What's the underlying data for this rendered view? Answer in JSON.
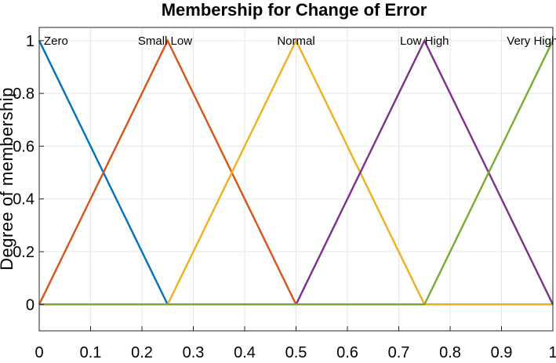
{
  "chart_data": {
    "type": "line",
    "title": "Membership for Change of Error",
    "xlabel": "",
    "ylabel": "Degree of membership",
    "xlim": [
      0,
      1
    ],
    "ylim": [
      -0.1,
      1.05
    ],
    "xticks": [
      "0",
      "0.1",
      "0.2",
      "0.3",
      "0.4",
      "0.5",
      "0.6",
      "0.7",
      "0.8",
      "0.9",
      "1"
    ],
    "yticks": [
      "0",
      "0.2",
      "0.4",
      "0.6",
      "0.8",
      "1"
    ],
    "grid": true,
    "series": [
      {
        "name": "Zero",
        "color": "#0072BD",
        "x": [
          0,
          0.25,
          1
        ],
        "y": [
          1,
          0,
          0
        ]
      },
      {
        "name": "Small Low",
        "color": "#D95319",
        "x": [
          0,
          0.25,
          0.5,
          1
        ],
        "y": [
          0,
          1,
          0,
          0
        ]
      },
      {
        "name": "Normal",
        "color": "#EDB120",
        "x": [
          0,
          0.25,
          0.5,
          0.75,
          1
        ],
        "y": [
          0,
          0,
          1,
          0,
          0
        ]
      },
      {
        "name": "Low High",
        "color": "#7E2F8E",
        "x": [
          0,
          0.5,
          0.75,
          1
        ],
        "y": [
          0,
          0,
          1,
          0
        ]
      },
      {
        "name": "Very High",
        "color": "#77AC30",
        "x": [
          0,
          0.75,
          1
        ],
        "y": [
          0,
          0,
          1
        ]
      }
    ],
    "labels": [
      {
        "text": "Zero",
        "x": 0.0
      },
      {
        "text": "Small Low",
        "x": 0.245
      },
      {
        "text": "Normal",
        "x": 0.5
      },
      {
        "text": "Low High",
        "x": 0.75
      },
      {
        "text": "Very High",
        "x": 0.96
      }
    ]
  }
}
